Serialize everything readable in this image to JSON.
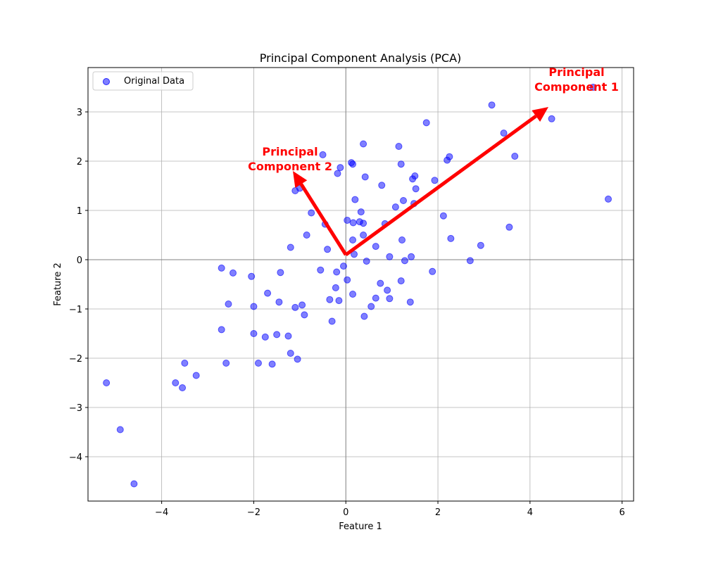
{
  "chart_data": {
    "type": "scatter",
    "title": "Principal Component Analysis (PCA)",
    "xlabel": "Feature 1",
    "ylabel": "Feature 2",
    "xlim": [
      -5.6,
      6.25
    ],
    "ylim": [
      -4.9,
      3.9
    ],
    "xticks": [
      -4,
      -2,
      0,
      2,
      4,
      6
    ],
    "yticks": [
      -4,
      -3,
      -2,
      -1,
      0,
      1,
      2,
      3
    ],
    "grid": true,
    "zero_lines": true,
    "legend": {
      "placement": "top-left",
      "entries": [
        "Original Data"
      ]
    },
    "point_color": "#0000ff",
    "series": [
      {
        "name": "Original Data",
        "points": [
          [
            -5.2,
            -2.5
          ],
          [
            -4.9,
            -3.45
          ],
          [
            -4.6,
            -4.55
          ],
          [
            -3.7,
            -2.5
          ],
          [
            -3.55,
            -2.6
          ],
          [
            -3.5,
            -2.1
          ],
          [
            -3.25,
            -2.35
          ],
          [
            -2.7,
            -0.17
          ],
          [
            -2.7,
            -1.42
          ],
          [
            -2.6,
            -2.1
          ],
          [
            -2.55,
            -0.9
          ],
          [
            -2.45,
            -0.27
          ],
          [
            -2.05,
            -0.34
          ],
          [
            -2.0,
            -0.95
          ],
          [
            -2.0,
            -1.5
          ],
          [
            -1.9,
            -2.1
          ],
          [
            -1.75,
            -1.57
          ],
          [
            -1.7,
            -0.68
          ],
          [
            -1.6,
            -2.12
          ],
          [
            -1.5,
            -1.52
          ],
          [
            -1.45,
            -0.86
          ],
          [
            -1.42,
            -0.26
          ],
          [
            -1.25,
            -1.55
          ],
          [
            -1.2,
            -1.9
          ],
          [
            -1.2,
            0.25
          ],
          [
            -1.1,
            -0.97
          ],
          [
            -1.1,
            1.4
          ],
          [
            -1.05,
            -2.02
          ],
          [
            -1.0,
            1.45
          ],
          [
            -0.95,
            -0.92
          ],
          [
            -0.9,
            -1.12
          ],
          [
            -0.85,
            0.5
          ],
          [
            -0.75,
            0.95
          ],
          [
            -0.55,
            -0.21
          ],
          [
            -0.5,
            2.13
          ],
          [
            -0.45,
            0.72
          ],
          [
            -0.4,
            0.21
          ],
          [
            -0.35,
            -0.81
          ],
          [
            -0.3,
            -1.25
          ],
          [
            -0.22,
            -0.57
          ],
          [
            -0.2,
            -0.25
          ],
          [
            -0.18,
            1.75
          ],
          [
            -0.15,
            -0.83
          ],
          [
            -0.12,
            1.87
          ],
          [
            -0.05,
            -0.13
          ],
          [
            0.03,
            -0.41
          ],
          [
            0.03,
            0.8
          ],
          [
            0.12,
            1.97
          ],
          [
            0.15,
            1.94
          ],
          [
            0.15,
            -0.7
          ],
          [
            0.15,
            0.4
          ],
          [
            0.16,
            0.75
          ],
          [
            0.18,
            0.11
          ],
          [
            0.2,
            1.22
          ],
          [
            0.3,
            0.77
          ],
          [
            0.33,
            0.97
          ],
          [
            0.38,
            2.35
          ],
          [
            0.38,
            0.5
          ],
          [
            0.38,
            0.74
          ],
          [
            0.4,
            -1.15
          ],
          [
            0.42,
            1.68
          ],
          [
            0.45,
            -0.03
          ],
          [
            0.55,
            -0.95
          ],
          [
            0.65,
            0.27
          ],
          [
            0.65,
            -0.78
          ],
          [
            0.75,
            -0.48
          ],
          [
            0.78,
            1.51
          ],
          [
            0.85,
            0.73
          ],
          [
            0.9,
            -0.62
          ],
          [
            0.95,
            0.06
          ],
          [
            0.95,
            -0.79
          ],
          [
            1.08,
            1.07
          ],
          [
            1.15,
            2.3
          ],
          [
            1.2,
            1.94
          ],
          [
            1.2,
            -0.43
          ],
          [
            1.22,
            0.4
          ],
          [
            1.25,
            1.2
          ],
          [
            1.28,
            -0.02
          ],
          [
            1.4,
            -0.86
          ],
          [
            1.42,
            0.06
          ],
          [
            1.45,
            1.64
          ],
          [
            1.48,
            1.14
          ],
          [
            1.5,
            1.7
          ],
          [
            1.52,
            1.44
          ],
          [
            1.75,
            2.78
          ],
          [
            1.88,
            -0.24
          ],
          [
            1.93,
            1.61
          ],
          [
            2.12,
            0.89
          ],
          [
            2.2,
            2.02
          ],
          [
            2.25,
            2.09
          ],
          [
            2.28,
            0.43
          ],
          [
            2.7,
            -0.02
          ],
          [
            2.93,
            0.29
          ],
          [
            3.17,
            3.14
          ],
          [
            3.43,
            2.57
          ],
          [
            3.55,
            0.66
          ],
          [
            3.67,
            2.1
          ],
          [
            4.47,
            2.86
          ],
          [
            5.37,
            3.5
          ],
          [
            5.7,
            1.23
          ]
        ]
      }
    ],
    "annotations": [
      {
        "label": "Principal\nComponent 1",
        "from": [
          0.0,
          0.1
        ],
        "to": [
          4.4,
          3.1
        ],
        "color": "#ff0000"
      },
      {
        "label": "Principal\nComponent 2",
        "from": [
          0.0,
          0.1
        ],
        "to": [
          -1.15,
          1.8
        ],
        "color": "#ff0000"
      }
    ]
  }
}
